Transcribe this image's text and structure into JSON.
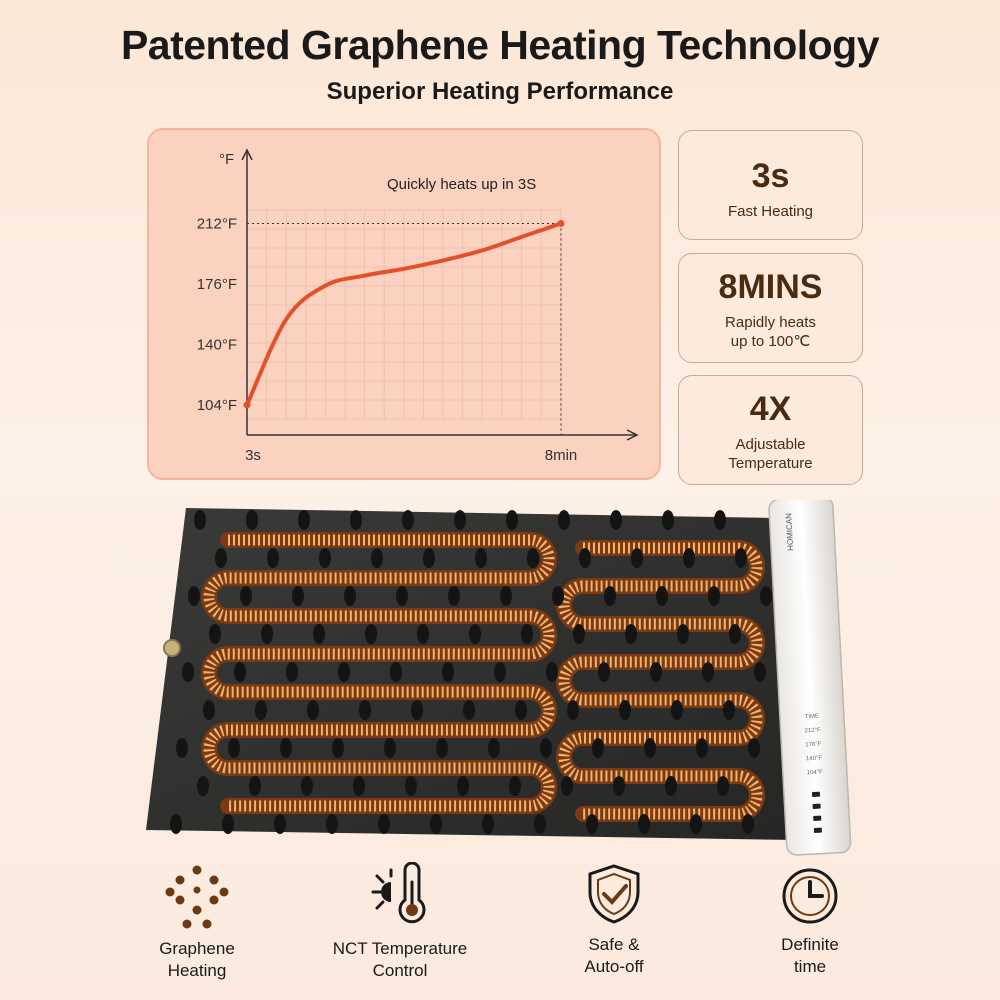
{
  "header": {
    "title": "Patented Graphene Heating Technology",
    "subtitle": "Superior Heating Performance"
  },
  "chart_data": {
    "type": "line",
    "title": "Quickly heats up in 3S",
    "ylabel": "°F",
    "xlabel": "",
    "x_ticks": [
      "3s",
      "8min"
    ],
    "y_ticks": [
      "104°F",
      "140°F",
      "176°F",
      "212°F"
    ],
    "y_tick_values": [
      104,
      140,
      176,
      212
    ],
    "x": [
      "3s",
      "~1min",
      "~2min",
      "~3min",
      "~4min",
      "~5min",
      "~6min",
      "~7min",
      "8min"
    ],
    "values": [
      104,
      155,
      175,
      181,
      185,
      190,
      196,
      204,
      212
    ],
    "ylim": [
      95,
      220
    ],
    "annotation": "Quickly heats up in 3S",
    "line_color": "#e3512a",
    "grid": true
  },
  "stats": [
    {
      "value": "3s",
      "label_lines": [
        "Fast Heating"
      ]
    },
    {
      "value": "8MINS",
      "label_lines": [
        "Rapidly heats",
        "up to 100℃"
      ]
    },
    {
      "value": "4X",
      "label_lines": [
        "Adjustable",
        "Temperature"
      ]
    }
  ],
  "mat": {
    "controller_brand": "HOMICAN",
    "controller_levels": [
      "TIME",
      "212°F",
      "176°F",
      "140°F",
      "104°F"
    ]
  },
  "features": [
    {
      "icon": "graphene-molecule-icon",
      "label_lines": [
        "Graphene",
        "Heating"
      ]
    },
    {
      "icon": "thermometer-icon",
      "label_lines": [
        "NCT Temperature",
        "Control"
      ]
    },
    {
      "icon": "shield-check-icon",
      "label_lines": [
        "Safe &",
        "Auto-off"
      ]
    },
    {
      "icon": "clock-icon",
      "label_lines": [
        "Definite",
        "time"
      ]
    }
  ],
  "colors": {
    "accent": "#e3512a",
    "brown_text": "#4a2a12",
    "icon_brown": "#6b3a14"
  }
}
